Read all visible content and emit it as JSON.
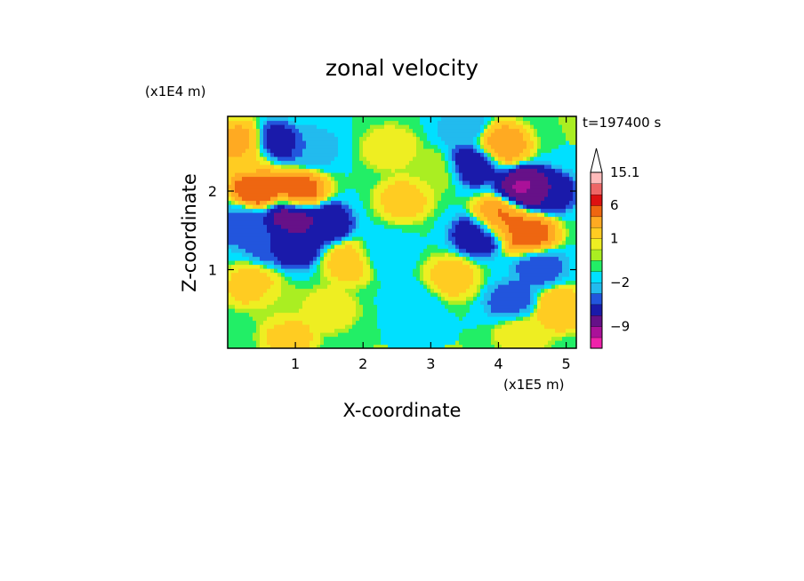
{
  "chart_data": {
    "type": "heatmap",
    "title": "zonal velocity",
    "xlabel": "X-coordinate",
    "ylabel": "Z-coordinate",
    "x_scale_label": "(x1E5 m)",
    "y_scale_label": "(x1E4 m)",
    "time_label": "t=197400 s",
    "xlim": [
      0,
      5.15
    ],
    "ylim": [
      0,
      2.95
    ],
    "x_ticks": [
      1,
      2,
      3,
      4,
      5
    ],
    "y_ticks": [
      1,
      2
    ],
    "colorbar": {
      "levels": [
        {
          "value": -13,
          "color": "#ee22aa"
        },
        {
          "value": -9,
          "color": "#aa1199"
        },
        {
          "value": -7,
          "color": "#661188"
        },
        {
          "value": -5,
          "color": "#1a1aaa"
        },
        {
          "value": -3,
          "color": "#2255dd"
        },
        {
          "value": -2,
          "color": "#22bbee"
        },
        {
          "value": -1,
          "color": "#00e0ff"
        },
        {
          "value": 0,
          "color": "#22ee66"
        },
        {
          "value": 0.5,
          "color": "#aaee22"
        },
        {
          "value": 1,
          "color": "#eeee22"
        },
        {
          "value": 2,
          "color": "#ffcc22"
        },
        {
          "value": 4,
          "color": "#ffaa22"
        },
        {
          "value": 6,
          "color": "#ee6611"
        },
        {
          "value": 9,
          "color": "#dd1111"
        },
        {
          "value": 12,
          "color": "#ee6666"
        },
        {
          "value": 15.1,
          "color": "#ffbbbb"
        }
      ],
      "tick_labels": [
        "15.1",
        "6",
        "1",
        "−2",
        "−9"
      ]
    },
    "features": [
      {
        "x": 0.2,
        "z": 2.6,
        "u": 6
      },
      {
        "x": 0.4,
        "z": 2.35,
        "u": 2
      },
      {
        "x": 0.7,
        "z": 2.6,
        "u": -5
      },
      {
        "x": 0.45,
        "z": 2.08,
        "u": 10
      },
      {
        "x": 1.05,
        "z": 2.0,
        "u": 8
      },
      {
        "x": 0.95,
        "z": 1.68,
        "u": -7
      },
      {
        "x": 1.45,
        "z": 1.6,
        "u": -5
      },
      {
        "x": 0.6,
        "z": 1.35,
        "u": -3
      },
      {
        "x": 1.0,
        "z": 1.3,
        "u": -5
      },
      {
        "x": 0.2,
        "z": 1.55,
        "u": -3
      },
      {
        "x": 1.8,
        "z": 1.1,
        "u": 3
      },
      {
        "x": 2.4,
        "z": 2.55,
        "u": 2
      },
      {
        "x": 2.6,
        "z": 1.9,
        "u": 3
      },
      {
        "x": 3.05,
        "z": 2.25,
        "u": 1
      },
      {
        "x": 2.3,
        "z": 1.2,
        "u": -1
      },
      {
        "x": 2.8,
        "z": 0.6,
        "u": -0.5
      },
      {
        "x": 1.5,
        "z": 0.5,
        "u": 2
      },
      {
        "x": 0.9,
        "z": 0.15,
        "u": 3
      },
      {
        "x": 3.5,
        "z": 2.8,
        "u": -2
      },
      {
        "x": 3.65,
        "z": 2.35,
        "u": -5
      },
      {
        "x": 4.05,
        "z": 2.6,
        "u": 6
      },
      {
        "x": 4.4,
        "z": 2.05,
        "u": -8
      },
      {
        "x": 4.75,
        "z": 2.0,
        "u": -5
      },
      {
        "x": 4.0,
        "z": 1.65,
        "u": 7
      },
      {
        "x": 3.7,
        "z": 1.45,
        "u": -5
      },
      {
        "x": 4.45,
        "z": 1.45,
        "u": 8
      },
      {
        "x": 4.6,
        "z": 1.05,
        "u": -3
      },
      {
        "x": 3.3,
        "z": 0.9,
        "u": 3
      },
      {
        "x": 4.2,
        "z": 0.6,
        "u": -3
      },
      {
        "x": 4.9,
        "z": 0.5,
        "u": 4
      },
      {
        "x": 4.35,
        "z": 0.2,
        "u": 2
      },
      {
        "x": 0.35,
        "z": 0.8,
        "u": 3
      },
      {
        "x": 0.75,
        "z": 0.55,
        "u": 1
      },
      {
        "x": 1.25,
        "z": 2.55,
        "u": -2
      }
    ]
  }
}
